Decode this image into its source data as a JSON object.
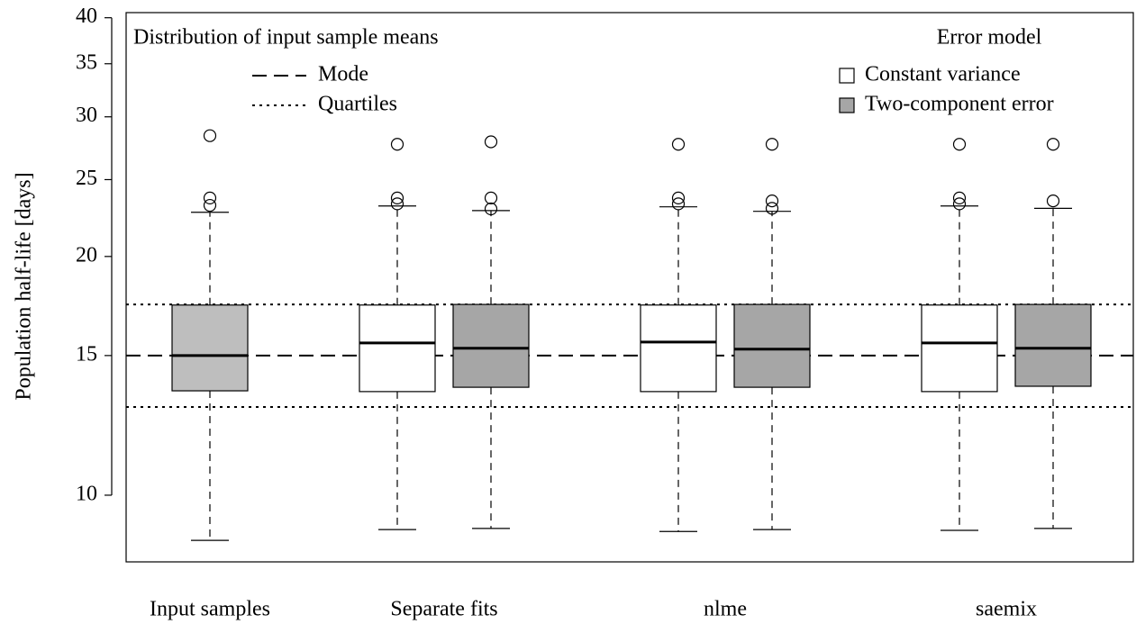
{
  "chart_data": {
    "type": "box",
    "y_label": "Population half-life [days]",
    "log_scale": true,
    "ylim": [
      8.24,
      40.6
    ],
    "yticks": [
      10,
      15,
      20,
      25,
      30,
      35,
      40
    ],
    "categories": [
      "Input samples",
      "Separate fits",
      "nlme",
      "saemix"
    ],
    "input_box": {
      "color": "#bebebe",
      "whislo": 8.77,
      "q1": 13.54,
      "median": 15.0,
      "q3": 17.37,
      "whishi": 22.74,
      "fliers": [
        28.4,
        23.7,
        23.2
      ]
    },
    "legend_title": "Error model",
    "series": [
      {
        "name": "Constant variance",
        "color": "#ffffff",
        "boxes": [
          null,
          {
            "whislo": 9.05,
            "q1": 13.51,
            "median": 15.56,
            "q3": 17.37,
            "whishi": 23.16,
            "fliers": [
              27.7,
              23.7,
              23.3
            ]
          },
          {
            "whislo": 9.0,
            "q1": 13.51,
            "median": 15.6,
            "q3": 17.37,
            "whishi": 23.1,
            "fliers": [
              27.7,
              23.7,
              23.3
            ]
          },
          {
            "whislo": 9.03,
            "q1": 13.51,
            "median": 15.56,
            "q3": 17.37,
            "whishi": 23.16,
            "fliers": [
              27.7,
              23.7,
              23.3
            ]
          }
        ]
      },
      {
        "name": "Two-component error",
        "color": "#a6a6a6",
        "boxes": [
          null,
          {
            "whislo": 9.08,
            "q1": 13.68,
            "median": 15.32,
            "q3": 17.4,
            "whishi": 22.85,
            "fliers": [
              27.9,
              23.7,
              22.96
            ]
          },
          {
            "whislo": 9.05,
            "q1": 13.68,
            "median": 15.28,
            "q3": 17.4,
            "whishi": 22.8,
            "fliers": [
              27.7,
              23.5,
              23.0
            ]
          },
          {
            "whislo": 9.08,
            "q1": 13.72,
            "median": 15.32,
            "q3": 17.4,
            "whishi": 23.0,
            "fliers": [
              27.7,
              23.5
            ]
          }
        ]
      }
    ],
    "reference_title": "Distribution of input sample means",
    "reference_lines": [
      {
        "name": "Mode",
        "style": "dashed",
        "values": [
          15
        ]
      },
      {
        "name": "Quartiles",
        "style": "dotted",
        "values": [
          12.92,
          17.4
        ]
      }
    ]
  }
}
